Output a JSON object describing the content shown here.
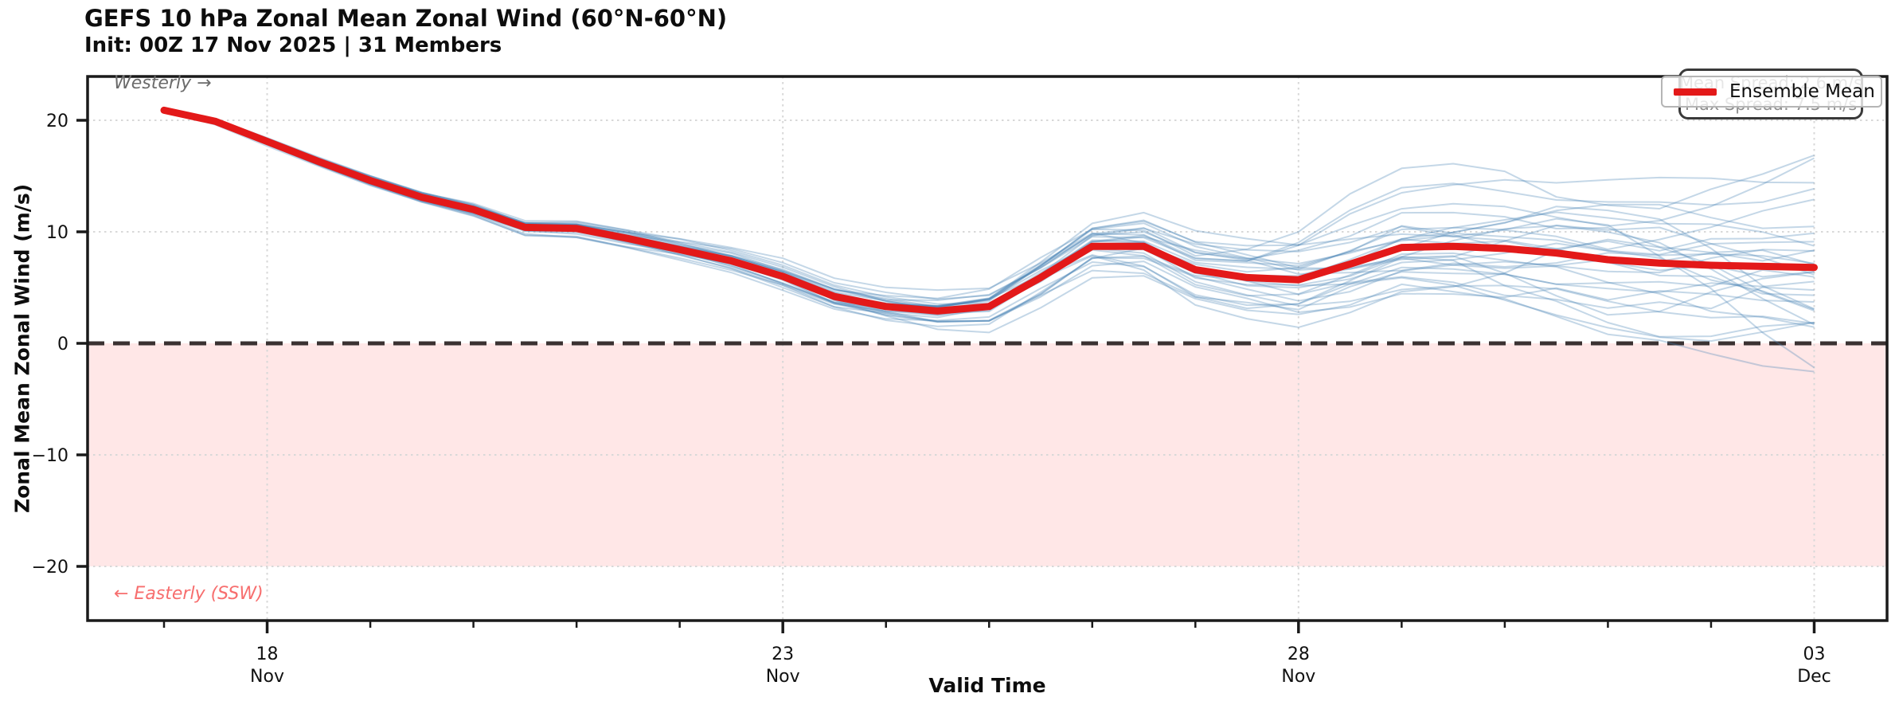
{
  "header": {
    "title": "GEFS 10 hPa Zonal Mean Zonal Wind (60°N-60°N)",
    "subtitle": "Init: 00Z 17 Nov 2025 | 31 Members"
  },
  "legend": {
    "label": "Ensemble Mean"
  },
  "stats": {
    "mean_spread": "Mean Spread: 2.6 m/s",
    "max_spread": "Max Spread: 7.5 m/s"
  },
  "annotations": {
    "westerly": "Westerly →",
    "easterly": "← Easterly (SSW)"
  },
  "axes": {
    "x_label": "Valid Time",
    "y_label": "Zonal Mean Zonal Wind (m/s)"
  },
  "colors": {
    "mean_line": "#e31919",
    "member_line": "rgba(70,130,180,0.32)",
    "shade_fill": "rgba(252,108,108,0.16)",
    "zero_line": "#3a3232",
    "grid": "#d8d8d8",
    "spine": "#1a1a1a",
    "tick_text": "#111111"
  },
  "chart_data": {
    "type": "line",
    "title": "GEFS 10 hPa Zonal Mean Zonal Wind (60°N-60°N)",
    "subtitle": "Init: 00Z 17 Nov 2025 | 31 Members",
    "xlabel": "Valid Time",
    "ylabel": "Zonal Mean Zonal Wind (m/s)",
    "x_unit": "days since 2025-11-17 00Z",
    "x": [
      0,
      0.5,
      1,
      1.5,
      2,
      2.5,
      3,
      3.5,
      4,
      4.5,
      5,
      5.5,
      6,
      6.5,
      7,
      7.5,
      8,
      8.5,
      9,
      9.5,
      10,
      10.5,
      11,
      11.5,
      12,
      12.5,
      13,
      13.5,
      14,
      14.5,
      15,
      15.5,
      16
    ],
    "series": [
      {
        "name": "Ensemble Mean",
        "values": [
          20.9,
          19.9,
          18.1,
          16.3,
          14.6,
          13.1,
          12.0,
          10.4,
          10.3,
          9.4,
          8.4,
          7.4,
          6.0,
          4.2,
          3.3,
          2.9,
          3.3,
          5.9,
          8.7,
          8.7,
          6.6,
          5.9,
          5.7,
          7.1,
          8.6,
          8.7,
          8.5,
          8.1,
          7.5,
          7.2,
          7.0,
          6.9,
          6.8
        ]
      }
    ],
    "ensemble": {
      "member_count": 31,
      "opacity": 0.32,
      "seed": 20251117,
      "spread_sigma": [
        0.12,
        0.18,
        0.25,
        0.3,
        0.35,
        0.4,
        0.45,
        0.5,
        0.55,
        0.62,
        0.7,
        0.8,
        0.9,
        1.0,
        1.1,
        1.25,
        1.4,
        1.65,
        1.9,
        2.15,
        2.4,
        2.75,
        3.1,
        3.25,
        3.4,
        3.7,
        4.0,
        4.4,
        4.8,
        5.15,
        5.5,
        5.9,
        6.3
      ]
    },
    "x_ticks": [
      {
        "t": 1,
        "day": "18",
        "month": "Nov"
      },
      {
        "t": 6,
        "day": "23",
        "month": "Nov"
      },
      {
        "t": 11,
        "day": "28",
        "month": "Nov"
      },
      {
        "t": 16,
        "day": "03",
        "month": "Dec"
      }
    ],
    "x_minor_ticks_every_days": 1,
    "y_ticks": [
      20,
      10,
      0,
      -10,
      -20
    ],
    "ylim": [
      -24.9,
      23.9
    ],
    "grid": "dotted",
    "zero_line": {
      "y": 0,
      "style": "dashed"
    },
    "shaded_band": {
      "y_from": -20,
      "y_to": 0,
      "meaning": "Easterly (SSW) regime"
    },
    "legend": {
      "position": "upper right",
      "entries": [
        "Ensemble Mean"
      ]
    },
    "annotations": [
      "Westerly →",
      "← Easterly (SSW)"
    ],
    "spread_stats": {
      "mean_spread_ms": 2.6,
      "max_spread_ms": 7.5
    }
  }
}
